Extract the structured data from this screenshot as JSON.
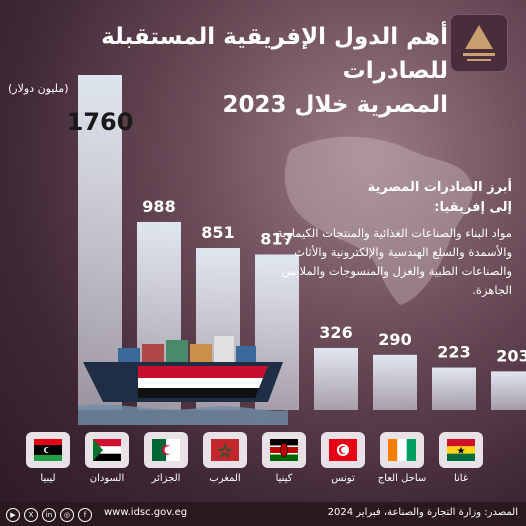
{
  "header": {
    "title_line1": "أهم الدول الإفريقية المستقبلة للصادرات",
    "title_line2": "المصرية خلال 2023"
  },
  "chart_data": {
    "type": "bar",
    "unit_label": "(مليون دولار)",
    "categories": [
      "ليبيا",
      "السودان",
      "الجزائر",
      "المغرب",
      "كينيا",
      "تونس",
      "ساحل العاج",
      "غانا"
    ],
    "values": [
      1760,
      988,
      851,
      817,
      326,
      290,
      223,
      203
    ],
    "value_labels": [
      "1760",
      "988",
      "851",
      "817",
      "326",
      "290",
      "223",
      "203"
    ],
    "ylim": [
      0,
      1760
    ]
  },
  "info": {
    "heading_line1": "أبرز الصادرات المصرية",
    "heading_line2": "إلى إفريقيا:",
    "body": "مواد البناء والصناعات الغذائية والمنتجات الكيماوية والأسمدة والسلع الهندسية والإلكترونية والأثاث والصناعات الطبية والغزل والمنسوجات والملابس الجاهزة."
  },
  "countries": [
    {
      "name": "ليبيا",
      "flag": "libya-flag"
    },
    {
      "name": "السودان",
      "flag": "sudan-flag"
    },
    {
      "name": "الجزائر",
      "flag": "algeria-flag"
    },
    {
      "name": "المغرب",
      "flag": "morocco-flag"
    },
    {
      "name": "كينيا",
      "flag": "kenya-flag"
    },
    {
      "name": "تونس",
      "flag": "tunisia-flag"
    },
    {
      "name": "ساحل العاج",
      "flag": "ivory-coast-flag"
    },
    {
      "name": "غانا",
      "flag": "ghana-flag"
    }
  ],
  "footer": {
    "website": "www.idsc.gov.eg",
    "source": "المصدر: وزارة التجارة والصناعة، فبراير 2024",
    "social_icons": [
      "youtube-icon",
      "x-icon",
      "linkedin-icon",
      "instagram-icon",
      "facebook-icon"
    ]
  },
  "colors": {
    "bar": "#e6eef8",
    "background": "#5a3c4a",
    "text": "#ffffff"
  }
}
